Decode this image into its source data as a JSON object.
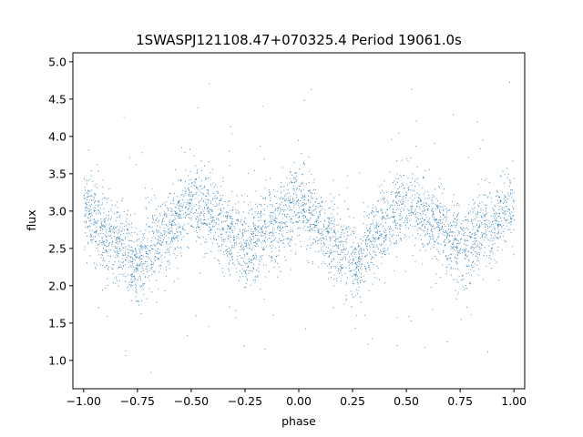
{
  "chart_data": {
    "type": "scatter",
    "title": "1SWASPJ121108.47+070325.4 Period 19061.0s",
    "xlabel": "phase",
    "ylabel": "flux",
    "xlim": [
      -1.05,
      1.05
    ],
    "ylim": [
      0.62,
      5.12
    ],
    "xticks": [
      -1.0,
      -0.75,
      -0.5,
      -0.25,
      0.0,
      0.25,
      0.5,
      0.75,
      1.0
    ],
    "xtick_labels": [
      "−1.00",
      "−0.75",
      "−0.50",
      "−0.25",
      "0.00",
      "0.25",
      "0.50",
      "0.75",
      "1.00"
    ],
    "yticks": [
      1.0,
      1.5,
      2.0,
      2.5,
      3.0,
      3.5,
      4.0,
      4.5,
      5.0
    ],
    "ytick_labels": [
      "1.0",
      "1.5",
      "2.0",
      "2.5",
      "3.0",
      "3.5",
      "4.0",
      "4.5",
      "5.0"
    ],
    "grid": false,
    "marker_color": "#1f77b4",
    "series": [
      {
        "description": "folded light curve, phase -1 to 1",
        "model_points": [
          {
            "x": -1.0,
            "y": 3.02
          },
          {
            "x": -0.875,
            "y": 2.62
          },
          {
            "x": -0.75,
            "y": 2.33
          },
          {
            "x": -0.625,
            "y": 2.72
          },
          {
            "x": -0.5,
            "y": 3.1
          },
          {
            "x": -0.375,
            "y": 2.86
          },
          {
            "x": -0.25,
            "y": 2.52
          },
          {
            "x": -0.125,
            "y": 2.78
          },
          {
            "x": 0.0,
            "y": 3.12
          },
          {
            "x": 0.125,
            "y": 2.66
          },
          {
            "x": 0.25,
            "y": 2.33
          },
          {
            "x": 0.375,
            "y": 2.72
          },
          {
            "x": 0.5,
            "y": 3.1
          },
          {
            "x": 0.625,
            "y": 2.86
          },
          {
            "x": 0.75,
            "y": 2.52
          },
          {
            "x": 0.875,
            "y": 2.78
          },
          {
            "x": 1.0,
            "y": 3.1
          }
        ],
        "scatter_sigma": 0.27,
        "point_count": 26000
      }
    ]
  }
}
